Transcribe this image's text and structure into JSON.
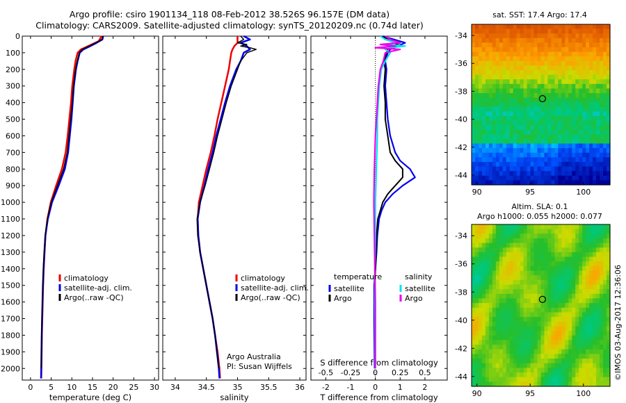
{
  "header": {
    "title1": "Argo profile: csiro 1901134_118 08-Feb-2012 38.526S 96.157E (DM data)",
    "title2": "Climatology: CARS2009. Satellite-adjusted climatology: synTS_20120209.nc (0.74d later)"
  },
  "colors": {
    "climatology": "#ee0000",
    "satellite": "#0000ee",
    "argo": "#000000",
    "salinity_satellite": "#00e5ee",
    "salinity_argo": "#ee00ee"
  },
  "chart_data": [
    {
      "type": "line",
      "name": "temperature",
      "xlabel": "temperature (deg C)",
      "xlim": [
        -2,
        31
      ],
      "xticks": [
        0,
        5,
        10,
        15,
        20,
        25,
        30
      ],
      "ylim": [
        2070,
        0
      ],
      "yticks": [
        0,
        100,
        200,
        300,
        400,
        500,
        600,
        700,
        800,
        900,
        1000,
        1100,
        1200,
        1300,
        1400,
        1500,
        1600,
        1700,
        1800,
        1900,
        2000
      ],
      "legend": [
        "climatology",
        "satellite-adj. clim.",
        "Argo(..raw -QC)"
      ],
      "legend_position": "lower-middle",
      "series": [
        {
          "name": "climatology",
          "depth": [
            0,
            30,
            60,
            80,
            100,
            150,
            200,
            300,
            400,
            500,
            600,
            700,
            800,
            900,
            1000,
            1100,
            1200,
            1300,
            1400,
            1500,
            1600,
            1700,
            1800,
            1900,
            2000,
            2060
          ],
          "values": [
            17.2,
            16.5,
            14.0,
            12.2,
            11.4,
            10.9,
            10.6,
            10.1,
            9.8,
            9.4,
            9.0,
            8.5,
            7.6,
            6.2,
            4.9,
            4.1,
            3.6,
            3.4,
            3.2,
            3.05,
            2.95,
            2.85,
            2.75,
            2.7,
            2.65,
            2.6
          ]
        },
        {
          "name": "satellite-adj. clim.",
          "depth": [
            0,
            20,
            40,
            60,
            80,
            100,
            150,
            200,
            300,
            400,
            500,
            600,
            700,
            800,
            900,
            1000,
            1100,
            1200,
            1300,
            1400,
            1500,
            1600,
            1700,
            1800,
            1900,
            2000,
            2060
          ],
          "values": [
            17.6,
            17.4,
            16.0,
            14.5,
            12.8,
            11.9,
            11.4,
            11.0,
            10.5,
            10.2,
            9.9,
            9.5,
            9.1,
            8.3,
            6.8,
            5.2,
            4.2,
            3.6,
            3.35,
            3.15,
            3.0,
            2.9,
            2.8,
            2.72,
            2.65,
            2.6,
            2.55
          ]
        },
        {
          "name": "Argo(..raw -QC)",
          "depth": [
            0,
            20,
            40,
            60,
            80,
            100,
            150,
            200,
            300,
            400,
            500,
            600,
            700,
            800,
            900,
            1000,
            1100,
            1200,
            1300,
            1400,
            1500,
            1600,
            1700,
            1800,
            1900,
            2000
          ],
          "values": [
            17.5,
            17.3,
            15.8,
            14.2,
            12.5,
            11.8,
            11.3,
            10.9,
            10.4,
            10.1,
            9.7,
            9.3,
            8.9,
            8.0,
            6.5,
            5.0,
            4.1,
            3.55,
            3.3,
            3.1,
            2.98,
            2.88,
            2.78,
            2.7,
            2.64,
            2.6
          ]
        }
      ]
    },
    {
      "type": "line",
      "name": "salinity",
      "xlabel": "salinity",
      "xlim": [
        33.8,
        36.1
      ],
      "xticks": [
        34,
        34.5,
        35,
        35.5,
        36
      ],
      "ylim": [
        2070,
        0
      ],
      "legend": [
        "climatology",
        "satellite-adj. clim.",
        "Argo(..raw -QC)"
      ],
      "legend_position": "lower-right",
      "annotation": [
        "Argo Australia",
        "PI: Susan Wijffels"
      ],
      "series": [
        {
          "name": "climatology",
          "depth": [
            0,
            40,
            60,
            80,
            100,
            150,
            200,
            300,
            400,
            500,
            600,
            700,
            800,
            900,
            1000,
            1100,
            1200,
            1300,
            1400,
            1500,
            1600,
            1700,
            1800,
            1900,
            2000,
            2060
          ],
          "values": [
            35.0,
            35.0,
            34.95,
            34.92,
            34.9,
            34.88,
            34.86,
            34.8,
            34.74,
            34.68,
            34.63,
            34.57,
            34.5,
            34.44,
            34.38,
            34.36,
            34.37,
            34.4,
            34.45,
            34.5,
            34.55,
            34.6,
            34.64,
            34.68,
            34.71,
            34.72
          ]
        },
        {
          "name": "satellite-adj. clim.",
          "depth": [
            0,
            20,
            40,
            60,
            80,
            100,
            150,
            200,
            300,
            400,
            500,
            600,
            700,
            800,
            900,
            1000,
            1100,
            1200,
            1300,
            1400,
            1500,
            1600,
            1700,
            1800,
            1900,
            2000,
            2060
          ],
          "values": [
            35.1,
            35.2,
            35.05,
            35.15,
            35.2,
            35.1,
            35.05,
            34.98,
            34.88,
            34.8,
            34.73,
            34.66,
            34.6,
            34.53,
            34.47,
            34.4,
            34.36,
            34.37,
            34.4,
            34.45,
            34.5,
            34.55,
            34.6,
            34.64,
            34.67,
            34.7,
            34.71
          ]
        },
        {
          "name": "Argo(..raw -QC)",
          "depth": [
            0,
            20,
            40,
            50,
            60,
            70,
            80,
            100,
            150,
            200,
            300,
            400,
            500,
            600,
            700,
            800,
            900,
            1000,
            1100,
            1200,
            1300,
            1400,
            1500,
            1600,
            1700,
            1800,
            1900,
            2000
          ],
          "values": [
            35.05,
            35.1,
            35.0,
            35.15,
            35.05,
            35.2,
            35.3,
            35.15,
            35.05,
            35.0,
            34.9,
            34.82,
            34.75,
            34.68,
            34.62,
            34.55,
            34.48,
            34.4,
            34.35,
            34.36,
            34.4,
            34.45,
            34.5,
            34.55,
            34.6,
            34.64,
            34.67,
            34.7
          ]
        }
      ]
    },
    {
      "type": "line",
      "name": "differences",
      "xlabel_bottom": "T difference from climatology",
      "xlabel_top": "S difference from climatology",
      "xlim_T": [
        -2.6,
        2.9
      ],
      "xticks_T": [
        -2,
        -1,
        0,
        1,
        2
      ],
      "xticks_S": [
        "-0.5",
        "-0.25",
        "0",
        "0.25",
        "0.5"
      ],
      "ylim": [
        2070,
        0
      ],
      "legend_T": {
        "title": "temperature",
        "items": [
          "satellite",
          "Argo"
        ]
      },
      "legend_S": {
        "title": "salinity",
        "items": [
          "satellite",
          "Argo"
        ]
      },
      "series": [
        {
          "name": "temperature satellite",
          "axis": "T",
          "depth": [
            0,
            40,
            60,
            80,
            100,
            150,
            200,
            300,
            400,
            500,
            600,
            700,
            750,
            800,
            850,
            900,
            950,
            1000,
            1050,
            1100,
            1200,
            1300,
            1400,
            1500,
            1700,
            2000
          ],
          "values": [
            0.3,
            1.2,
            0.9,
            0.6,
            0.5,
            0.4,
            0.45,
            0.4,
            0.45,
            0.5,
            0.6,
            0.8,
            1.0,
            1.4,
            1.6,
            1.1,
            0.7,
            0.4,
            0.25,
            0.15,
            0.08,
            0.05,
            0.0,
            -0.05,
            -0.05,
            -0.03
          ]
        },
        {
          "name": "temperature Argo",
          "axis": "T",
          "depth": [
            0,
            40,
            60,
            80,
            100,
            150,
            200,
            300,
            400,
            500,
            600,
            700,
            750,
            800,
            850,
            900,
            950,
            1000,
            1050,
            1100,
            1200,
            1300,
            1400,
            1500,
            1700,
            2000
          ],
          "values": [
            0.2,
            1.0,
            0.7,
            0.5,
            0.45,
            0.35,
            0.4,
            0.35,
            0.4,
            0.4,
            0.5,
            0.6,
            0.8,
            1.1,
            1.1,
            0.8,
            0.5,
            0.3,
            0.2,
            0.1,
            0.05,
            0.03,
            0.0,
            -0.02,
            -0.02,
            -0.01
          ]
        },
        {
          "name": "salinity satellite",
          "axis": "S",
          "depth": [
            0,
            20,
            40,
            50,
            60,
            70,
            80,
            100,
            150,
            200,
            300,
            400,
            500,
            600,
            800,
            1000,
            1200,
            1400,
            1600,
            1800,
            2000
          ],
          "values": [
            0.05,
            0.1,
            0.2,
            0.1,
            0.3,
            0.15,
            0.1,
            0.15,
            0.1,
            0.06,
            0.04,
            0.03,
            0.02,
            0.02,
            0.01,
            0.0,
            0.0,
            -0.005,
            -0.005,
            -0.003,
            -0.002
          ]
        },
        {
          "name": "salinity Argo",
          "axis": "S",
          "depth": [
            0,
            20,
            40,
            50,
            60,
            70,
            80,
            100,
            150,
            200,
            300,
            400,
            500,
            600,
            800,
            1000,
            1200,
            1400,
            1600,
            1800,
            2000
          ],
          "values": [
            0.1,
            0.15,
            0.25,
            0.05,
            0.2,
            0.0,
            0.25,
            0.1,
            0.08,
            0.05,
            0.03,
            0.02,
            0.01,
            0.0,
            -0.01,
            -0.015,
            -0.01,
            -0.005,
            0.0,
            0.0,
            0.0
          ]
        }
      ]
    },
    {
      "type": "heatmap",
      "name": "sst-map",
      "title": "sat. SST: 17.4  Argo: 17.4",
      "xlim": [
        89.5,
        102.5
      ],
      "xticks": [
        90,
        95,
        100
      ],
      "ylim": [
        -44.7,
        -33.2
      ],
      "yticks": [
        -34,
        -36,
        -38,
        -40,
        -42,
        -44
      ],
      "marker": {
        "lon": 96.157,
        "lat": -38.526
      }
    },
    {
      "type": "heatmap",
      "name": "sla-map",
      "title1": "Altim. SLA: 0.1",
      "title2": "Argo h1000: 0.055 h2000: 0.077",
      "xlim": [
        89.5,
        102.5
      ],
      "xticks": [
        90,
        95,
        100
      ],
      "ylim": [
        -44.7,
        -33.2
      ],
      "yticks": [
        -34,
        -36,
        -38,
        -40,
        -42,
        -44
      ],
      "marker": {
        "lon": 96.157,
        "lat": -38.526
      }
    }
  ],
  "watermark": "©IMOS 03-Aug-2017 12:36:06"
}
